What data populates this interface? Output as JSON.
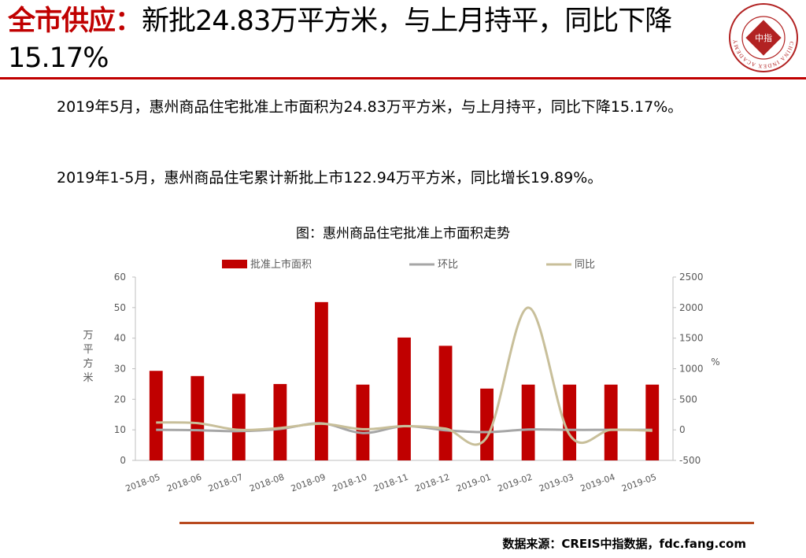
{
  "header": {
    "title_lead": "全市供应：",
    "title_rest": "新批24.83万平方米，与上月持平，同比下降15.17%"
  },
  "body": {
    "para1": "2019年5月，惠州商品住宅批准上市面积为24.83万平方米，与上月持平，同比下降15.17%。",
    "para2": "2019年1-5月，惠州商品住宅累计新批上市122.94万平方米，同比增长19.89%。"
  },
  "logo": {
    "center_text": "中指",
    "ring_text": "CHINA INDEX ACADEMY",
    "color": "#b22222"
  },
  "footer": {
    "source": "数据来源：CREIS中指数据，fdc.fang.com"
  },
  "colors": {
    "accent": "#c00000",
    "bar": "#c00000",
    "mom_line": "#a6a6a6",
    "yoy_line": "#c8bf9a"
  },
  "chart_data": {
    "type": "bar",
    "title": "图：惠州商品住宅批准上市面积走势",
    "categories": [
      "2018-05",
      "2018-06",
      "2018-07",
      "2018-08",
      "2018-09",
      "2018-10",
      "2018-11",
      "2018-12",
      "2019-01",
      "2019-02",
      "2019-03",
      "2019-04",
      "2019-05"
    ],
    "series": [
      {
        "name": "批准上市面积",
        "type": "bar",
        "axis": "left",
        "values": [
          29.3,
          27.6,
          21.8,
          25.0,
          51.8,
          24.8,
          40.2,
          37.5,
          23.5,
          24.8,
          24.8,
          24.8,
          24.8
        ]
      },
      {
        "name": "环比",
        "type": "line",
        "axis": "right",
        "values": [
          0,
          -6,
          -21,
          15,
          107,
          -52,
          62,
          -7,
          -37,
          6,
          0,
          0,
          0
        ]
      },
      {
        "name": "同比",
        "type": "line",
        "axis": "right",
        "values": [
          120,
          110,
          0,
          30,
          100,
          10,
          60,
          20,
          -120,
          2000,
          -80,
          0,
          -15
        ]
      }
    ],
    "ylabel": "万平方米",
    "y2label": "%",
    "ylim": [
      0,
      60
    ],
    "yticks": [
      0,
      10,
      20,
      30,
      40,
      50,
      60
    ],
    "y2lim": [
      -500,
      2500
    ],
    "y2ticks": [
      -500,
      0,
      500,
      1000,
      1500,
      2000,
      2500
    ],
    "legend_position": "top",
    "grid": false
  }
}
